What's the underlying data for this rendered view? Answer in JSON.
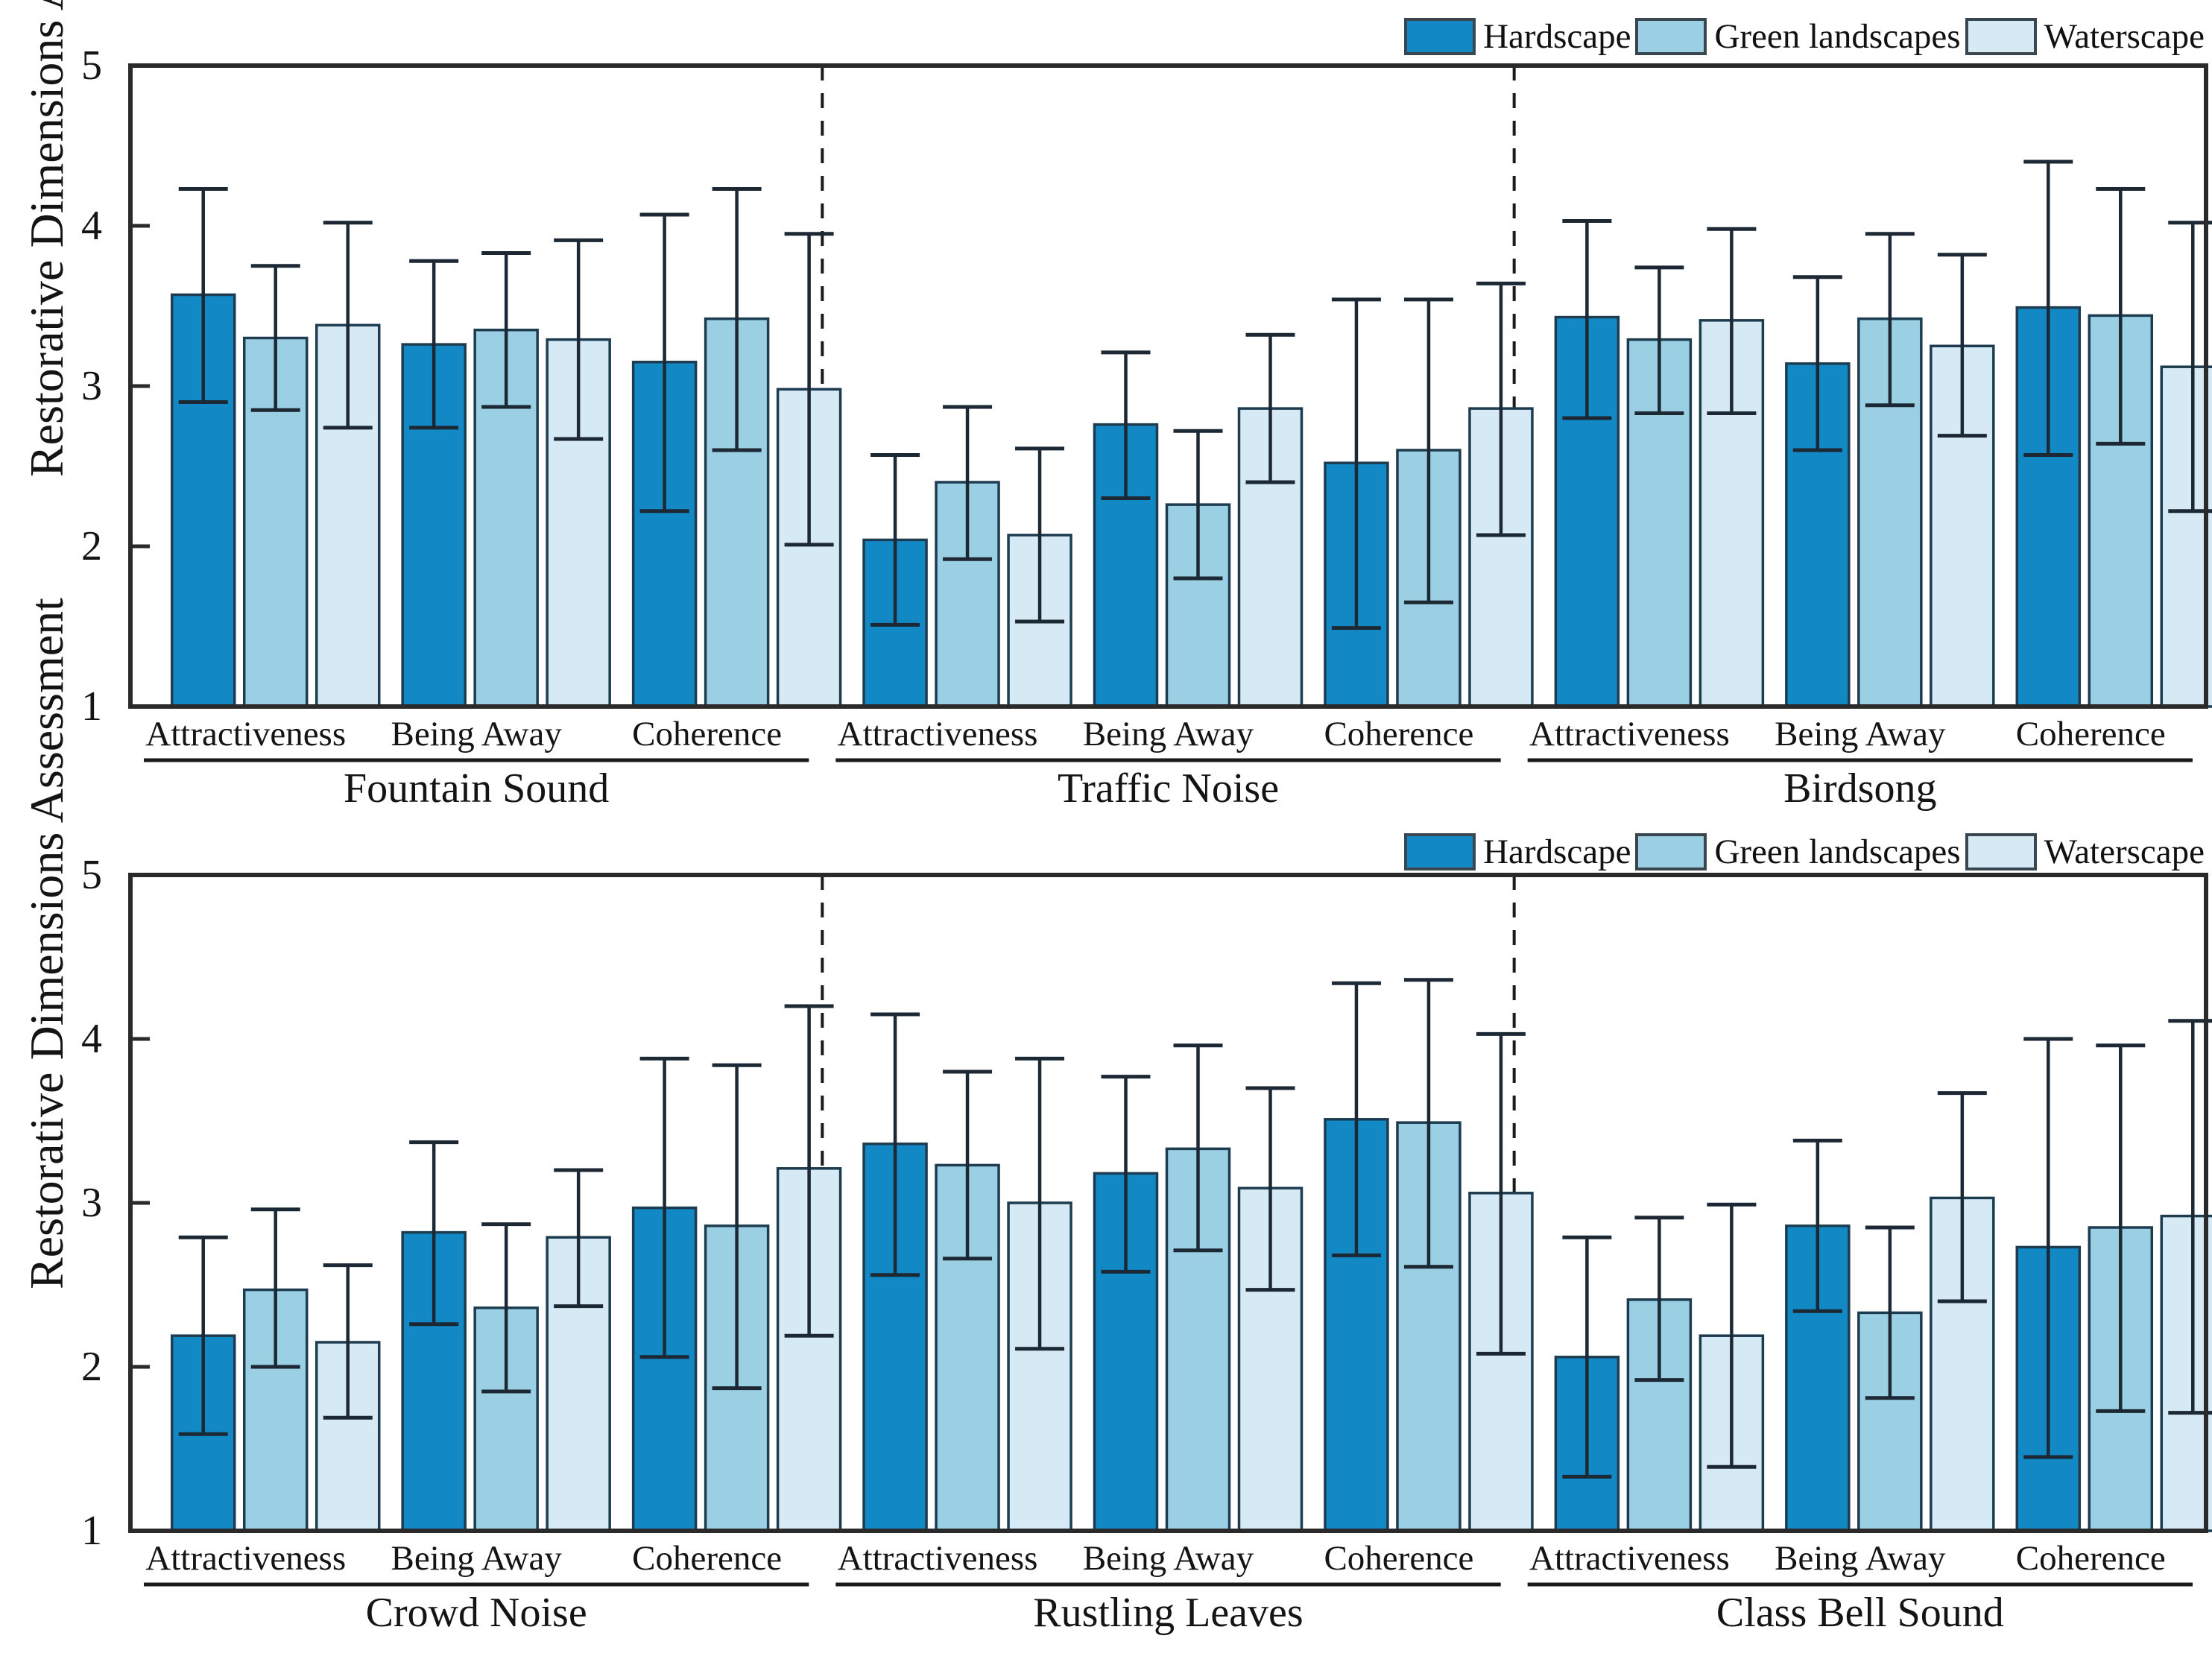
{
  "figure": {
    "background": "#ffffff",
    "axis_color": "#2a2a2a",
    "error_bar_color": "#1c2935",
    "bar_edge_color": "#1e3c50",
    "separator_color": "#1a1a1a",
    "text_color": "#141414"
  },
  "chart_data": {
    "type": "bar",
    "title": "",
    "ylabel": "Restorative Dimensions Assessment",
    "xlabel": "",
    "ylim": [
      1,
      5
    ],
    "yticks": [
      "1",
      "2",
      "3",
      "4",
      "5"
    ],
    "grid": false,
    "legend_position": "top-right",
    "error_bars": true,
    "series": [
      {
        "name": "Hardscape",
        "color": "#1288c4"
      },
      {
        "name": "Green landscapes",
        "color": "#9bcfe3"
      },
      {
        "name": "Waterscape",
        "color": "#d6eaf5"
      }
    ],
    "panels": [
      {
        "groups": [
          {
            "label": "Fountain Sound",
            "categories": [
              {
                "label": "Attractiveness",
                "bars": [
                  {
                    "v": 3.57,
                    "lo": 2.9,
                    "hi": 4.23
                  },
                  {
                    "v": 3.3,
                    "lo": 2.85,
                    "hi": 3.75
                  },
                  {
                    "v": 3.38,
                    "lo": 2.74,
                    "hi": 4.02
                  }
                ]
              },
              {
                "label": "Being Away",
                "bars": [
                  {
                    "v": 3.26,
                    "lo": 2.74,
                    "hi": 3.78
                  },
                  {
                    "v": 3.35,
                    "lo": 2.87,
                    "hi": 3.83
                  },
                  {
                    "v": 3.29,
                    "lo": 2.67,
                    "hi": 3.91
                  }
                ]
              },
              {
                "label": "Coherence",
                "bars": [
                  {
                    "v": 3.15,
                    "lo": 2.22,
                    "hi": 4.07
                  },
                  {
                    "v": 3.42,
                    "lo": 2.6,
                    "hi": 4.23
                  },
                  {
                    "v": 2.98,
                    "lo": 2.01,
                    "hi": 3.95
                  }
                ]
              }
            ]
          },
          {
            "label": "Traffic Noise",
            "categories": [
              {
                "label": "Attractiveness",
                "bars": [
                  {
                    "v": 2.04,
                    "lo": 1.51,
                    "hi": 2.57
                  },
                  {
                    "v": 2.4,
                    "lo": 1.92,
                    "hi": 2.87
                  },
                  {
                    "v": 2.07,
                    "lo": 1.53,
                    "hi": 2.61
                  }
                ]
              },
              {
                "label": "Being Away",
                "bars": [
                  {
                    "v": 2.76,
                    "lo": 2.3,
                    "hi": 3.21
                  },
                  {
                    "v": 2.26,
                    "lo": 1.8,
                    "hi": 2.72
                  },
                  {
                    "v": 2.86,
                    "lo": 2.4,
                    "hi": 3.32
                  }
                ]
              },
              {
                "label": "Coherence",
                "bars": [
                  {
                    "v": 2.52,
                    "lo": 1.49,
                    "hi": 3.54
                  },
                  {
                    "v": 2.6,
                    "lo": 1.65,
                    "hi": 3.54
                  },
                  {
                    "v": 2.86,
                    "lo": 2.07,
                    "hi": 3.64
                  }
                ]
              }
            ]
          },
          {
            "label": "Birdsong",
            "categories": [
              {
                "label": "Attractiveness",
                "bars": [
                  {
                    "v": 3.43,
                    "lo": 2.8,
                    "hi": 4.03
                  },
                  {
                    "v": 3.29,
                    "lo": 2.83,
                    "hi": 3.74
                  },
                  {
                    "v": 3.41,
                    "lo": 2.83,
                    "hi": 3.98
                  }
                ]
              },
              {
                "label": "Being Away",
                "bars": [
                  {
                    "v": 3.14,
                    "lo": 2.6,
                    "hi": 3.68
                  },
                  {
                    "v": 3.42,
                    "lo": 2.88,
                    "hi": 3.95
                  },
                  {
                    "v": 3.25,
                    "lo": 2.69,
                    "hi": 3.82
                  }
                ]
              },
              {
                "label": "Coherence",
                "bars": [
                  {
                    "v": 3.49,
                    "lo": 2.57,
                    "hi": 4.4
                  },
                  {
                    "v": 3.44,
                    "lo": 2.64,
                    "hi": 4.23
                  },
                  {
                    "v": 3.12,
                    "lo": 2.22,
                    "hi": 4.02
                  }
                ]
              }
            ]
          }
        ]
      },
      {
        "groups": [
          {
            "label": "Crowd Noise",
            "categories": [
              {
                "label": "Attractiveness",
                "bars": [
                  {
                    "v": 2.19,
                    "lo": 1.59,
                    "hi": 2.79
                  },
                  {
                    "v": 2.47,
                    "lo": 2.0,
                    "hi": 2.96
                  },
                  {
                    "v": 2.15,
                    "lo": 1.69,
                    "hi": 2.62
                  }
                ]
              },
              {
                "label": "Being Away",
                "bars": [
                  {
                    "v": 2.82,
                    "lo": 2.26,
                    "hi": 3.37
                  },
                  {
                    "v": 2.36,
                    "lo": 1.85,
                    "hi": 2.87
                  },
                  {
                    "v": 2.79,
                    "lo": 2.37,
                    "hi": 3.2
                  }
                ]
              },
              {
                "label": "Coherence",
                "bars": [
                  {
                    "v": 2.97,
                    "lo": 2.06,
                    "hi": 3.88
                  },
                  {
                    "v": 2.86,
                    "lo": 1.87,
                    "hi": 3.84
                  },
                  {
                    "v": 3.21,
                    "lo": 2.19,
                    "hi": 4.2
                  }
                ]
              }
            ]
          },
          {
            "label": "Rustling Leaves",
            "categories": [
              {
                "label": "Attractiveness",
                "bars": [
                  {
                    "v": 3.36,
                    "lo": 2.56,
                    "hi": 4.15
                  },
                  {
                    "v": 3.23,
                    "lo": 2.66,
                    "hi": 3.8
                  },
                  {
                    "v": 3.0,
                    "lo": 2.11,
                    "hi": 3.88
                  }
                ]
              },
              {
                "label": "Being Away",
                "bars": [
                  {
                    "v": 3.18,
                    "lo": 2.58,
                    "hi": 3.77
                  },
                  {
                    "v": 3.33,
                    "lo": 2.71,
                    "hi": 3.96
                  },
                  {
                    "v": 3.09,
                    "lo": 2.47,
                    "hi": 3.7
                  }
                ]
              },
              {
                "label": "Coherence",
                "bars": [
                  {
                    "v": 3.51,
                    "lo": 2.68,
                    "hi": 4.34
                  },
                  {
                    "v": 3.49,
                    "lo": 2.61,
                    "hi": 4.36
                  },
                  {
                    "v": 3.06,
                    "lo": 2.08,
                    "hi": 4.03
                  }
                ]
              }
            ]
          },
          {
            "label": "Class Bell Sound",
            "categories": [
              {
                "label": "Attractiveness",
                "bars": [
                  {
                    "v": 2.06,
                    "lo": 1.33,
                    "hi": 2.79
                  },
                  {
                    "v": 2.41,
                    "lo": 1.92,
                    "hi": 2.91
                  },
                  {
                    "v": 2.19,
                    "lo": 1.39,
                    "hi": 2.99
                  }
                ]
              },
              {
                "label": "Being Away",
                "bars": [
                  {
                    "v": 2.86,
                    "lo": 2.34,
                    "hi": 3.38
                  },
                  {
                    "v": 2.33,
                    "lo": 1.81,
                    "hi": 2.85
                  },
                  {
                    "v": 3.03,
                    "lo": 2.4,
                    "hi": 3.67
                  }
                ]
              },
              {
                "label": "Coherence",
                "bars": [
                  {
                    "v": 2.73,
                    "lo": 1.45,
                    "hi": 4.0
                  },
                  {
                    "v": 2.85,
                    "lo": 1.73,
                    "hi": 3.96
                  },
                  {
                    "v": 2.92,
                    "lo": 1.72,
                    "hi": 4.11
                  }
                ]
              }
            ]
          }
        ]
      }
    ]
  }
}
